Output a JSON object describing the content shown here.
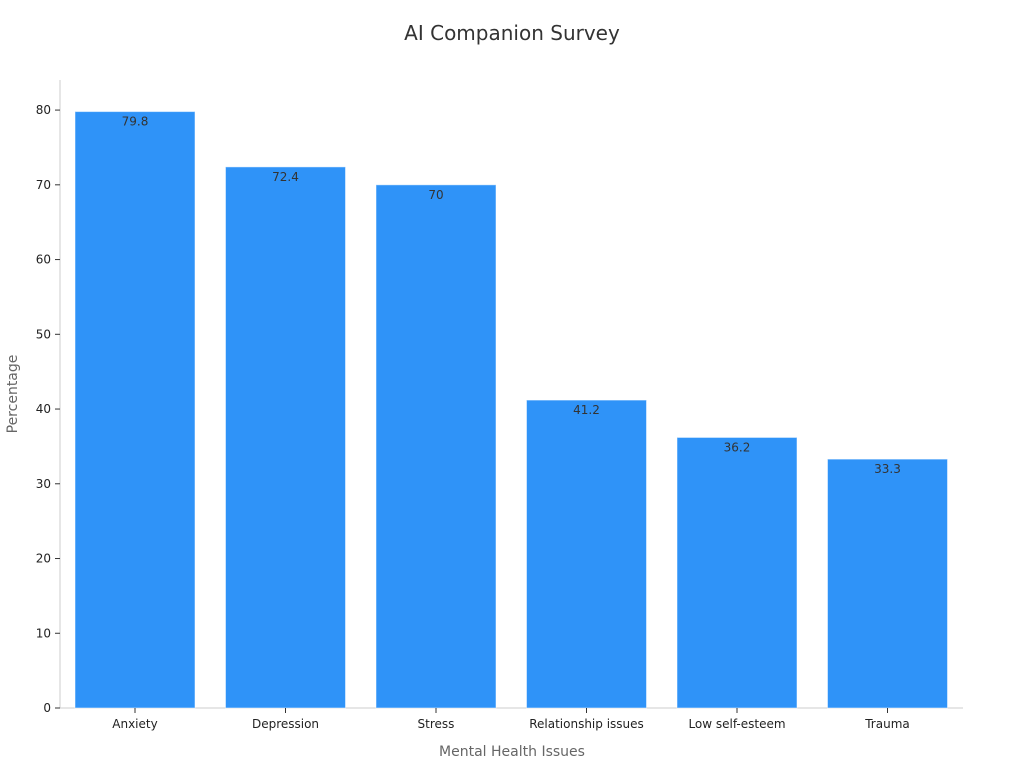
{
  "chart_data": {
    "type": "bar",
    "title": "AI Companion Survey",
    "xlabel": "Mental Health Issues",
    "ylabel": "Percentage",
    "categories": [
      "Anxiety",
      "Depression",
      "Stress",
      "Relationship issues",
      "Low self-esteem",
      "Trauma"
    ],
    "values": [
      79.8,
      72.4,
      70,
      41.2,
      36.2,
      33.3
    ],
    "data_labels": [
      "79.8",
      "72.4",
      "70",
      "41.2",
      "36.2",
      "33.3"
    ],
    "ylim": [
      0,
      84
    ],
    "yticks": [
      0,
      10,
      20,
      30,
      40,
      50,
      60,
      70,
      80
    ],
    "grid": false,
    "legend": "none",
    "bar_color": "#2f93f8"
  }
}
